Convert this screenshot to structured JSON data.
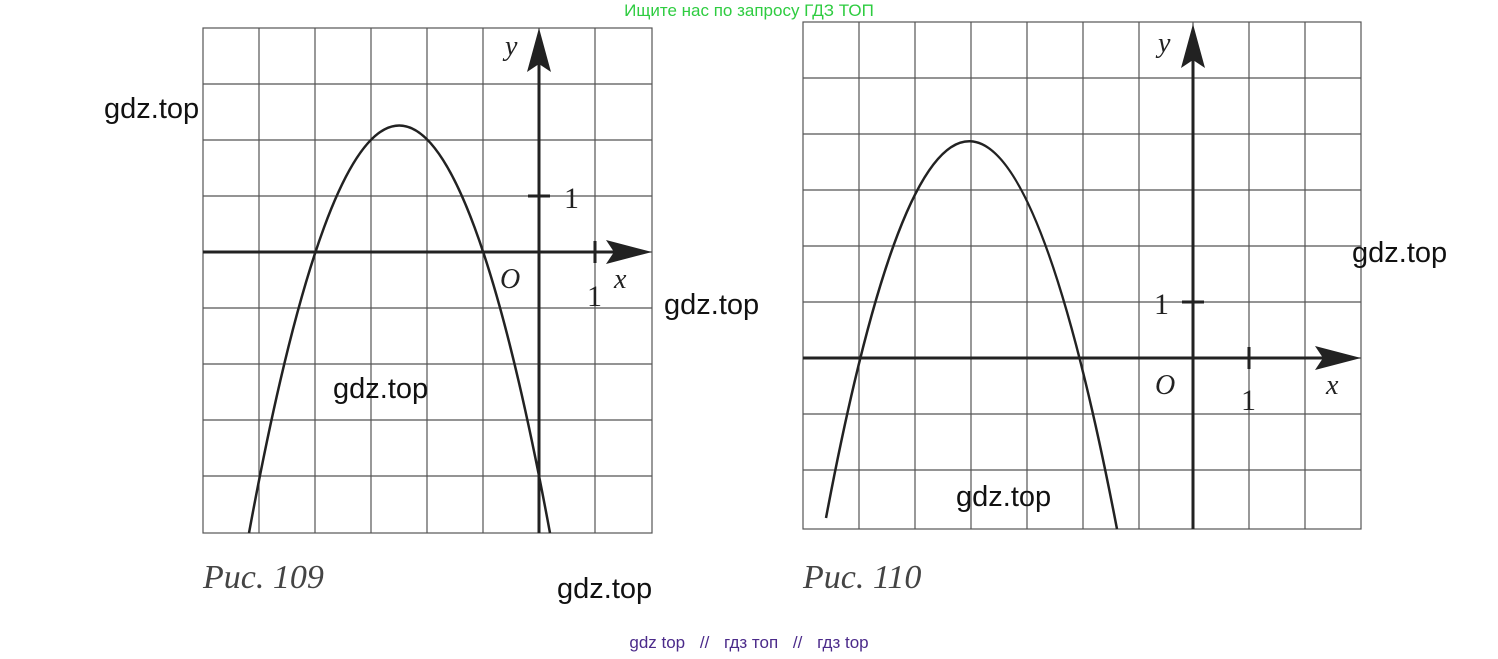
{
  "banner": {
    "text": "Ищите нас по запросу ГДЗ ТОП"
  },
  "watermarks": [
    "gdz.top",
    "gdz.top",
    "gdz.top",
    "gdz.top",
    "gdz.top",
    "gdz.top"
  ],
  "figures": [
    {
      "caption": "Рис. 109",
      "x_axis_label": "x",
      "y_axis_label": "y",
      "origin_label": "O",
      "x_tick_label": "1",
      "y_tick_label": "1",
      "curve": {
        "type": "parabola",
        "vertex": [
          -2.5,
          2.2
        ],
        "roots": [
          -4,
          -1
        ],
        "opens": "down"
      }
    },
    {
      "caption": "Рис. 110",
      "x_axis_label": "x",
      "y_axis_label": "y",
      "origin_label": "O",
      "x_tick_label": "1",
      "y_tick_label": "1",
      "curve": {
        "type": "parabola",
        "vertex": [
          -4,
          4
        ],
        "roots": [
          -6,
          -2
        ],
        "opens": "down"
      }
    }
  ],
  "footer": {
    "links": [
      "gdz top",
      "гдз топ",
      "гдз top"
    ],
    "separator": "//"
  },
  "colors": {
    "banner": "#2ecc40",
    "footer": "#4b2a8a",
    "ink": "#222222"
  }
}
